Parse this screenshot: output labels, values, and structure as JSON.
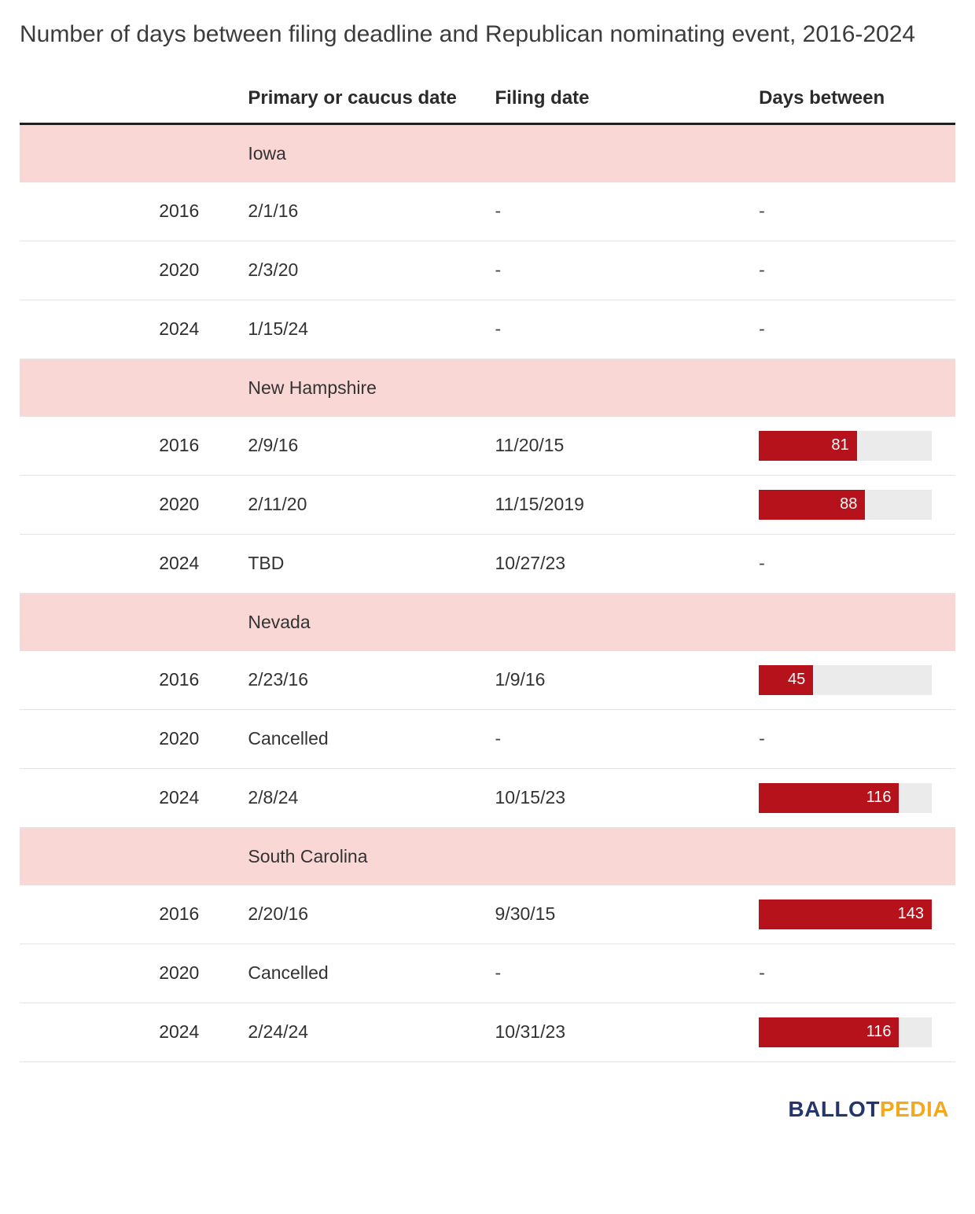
{
  "title": "Number of days between filing deadline and Republican nominating event, 2016-2024",
  "columns": {
    "year": "",
    "primary": "Primary or caucus date",
    "filing": "Filing date",
    "days": "Days between"
  },
  "empty_marker": "-",
  "colors": {
    "bar": "#b5121b",
    "bar_track": "#ebebeb",
    "section_bg": "#f9d7d5",
    "header_rule": "#1f1f1f",
    "logo_ballot": "#24356b",
    "logo_pedia": "#f5a81c"
  },
  "chart_data": {
    "type": "table",
    "title": "Number of days between filing deadline and Republican nominating event, 2016-2024",
    "bar_axis_max": 143,
    "sections": [
      {
        "state": "Iowa",
        "rows": [
          {
            "year": "2016",
            "primary_date": "2/1/16",
            "filing_date": "-",
            "days": null
          },
          {
            "year": "2020",
            "primary_date": "2/3/20",
            "filing_date": "-",
            "days": null
          },
          {
            "year": "2024",
            "primary_date": "1/15/24",
            "filing_date": "-",
            "days": null
          }
        ]
      },
      {
        "state": "New Hampshire",
        "rows": [
          {
            "year": "2016",
            "primary_date": "2/9/16",
            "filing_date": "11/20/15",
            "days": 81
          },
          {
            "year": "2020",
            "primary_date": "2/11/20",
            "filing_date": "11/15/2019",
            "days": 88
          },
          {
            "year": "2024",
            "primary_date": "TBD",
            "filing_date": "10/27/23",
            "days": null
          }
        ]
      },
      {
        "state": "Nevada",
        "rows": [
          {
            "year": "2016",
            "primary_date": "2/23/16",
            "filing_date": "1/9/16",
            "days": 45
          },
          {
            "year": "2020",
            "primary_date": "Cancelled",
            "filing_date": "-",
            "days": null
          },
          {
            "year": "2024",
            "primary_date": "2/8/24",
            "filing_date": "10/15/23",
            "days": 116
          }
        ]
      },
      {
        "state": "South Carolina",
        "rows": [
          {
            "year": "2016",
            "primary_date": "2/20/16",
            "filing_date": "9/30/15",
            "days": 143
          },
          {
            "year": "2020",
            "primary_date": "Cancelled",
            "filing_date": "-",
            "days": null
          },
          {
            "year": "2024",
            "primary_date": "2/24/24",
            "filing_date": "10/31/23",
            "days": 116
          }
        ]
      }
    ]
  },
  "logo": {
    "part1": "BALLOT",
    "part2": "PEDIA"
  }
}
